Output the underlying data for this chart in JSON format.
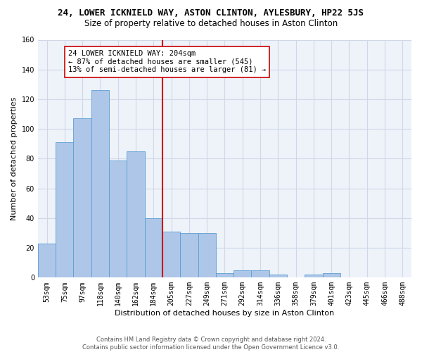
{
  "title1": "24, LOWER ICKNIELD WAY, ASTON CLINTON, AYLESBURY, HP22 5JS",
  "title2": "Size of property relative to detached houses in Aston Clinton",
  "xlabel": "Distribution of detached houses by size in Aston Clinton",
  "ylabel": "Number of detached properties",
  "footnote": "Contains HM Land Registry data © Crown copyright and database right 2024.\nContains public sector information licensed under the Open Government Licence v3.0.",
  "bar_labels": [
    "53sqm",
    "75sqm",
    "97sqm",
    "118sqm",
    "140sqm",
    "162sqm",
    "184sqm",
    "205sqm",
    "227sqm",
    "249sqm",
    "271sqm",
    "292sqm",
    "314sqm",
    "336sqm",
    "358sqm",
    "379sqm",
    "401sqm",
    "423sqm",
    "445sqm",
    "466sqm",
    "488sqm"
  ],
  "bar_values": [
    23,
    91,
    107,
    126,
    79,
    85,
    40,
    31,
    30,
    30,
    3,
    5,
    5,
    2,
    0,
    2,
    3,
    0,
    0,
    0,
    0
  ],
  "bar_color": "#aec6e8",
  "bar_edgecolor": "#5a9fd4",
  "vline_color": "#cc0000",
  "annotation_text": "24 LOWER ICKNIELD WAY: 204sqm\n← 87% of detached houses are smaller (545)\n13% of semi-detached houses are larger (81) →",
  "annotation_box_edgecolor": "#cc0000",
  "annotation_box_facecolor": "#ffffff",
  "ylim": [
    0,
    160
  ],
  "yticks": [
    0,
    20,
    40,
    60,
    80,
    100,
    120,
    140,
    160
  ],
  "grid_color": "#d0d8e8",
  "background_color": "#eef2f9",
  "title1_fontsize": 9,
  "title2_fontsize": 8.5,
  "xlabel_fontsize": 8,
  "ylabel_fontsize": 8,
  "tick_fontsize": 7,
  "annot_fontsize": 7.5,
  "footnote_fontsize": 6
}
